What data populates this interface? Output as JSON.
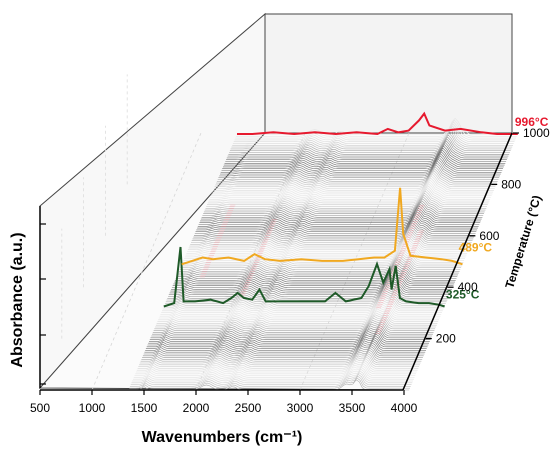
{
  "chart_data": {
    "type": "line",
    "subtype": "3d-waterfall-ftir",
    "xlabel": "Wavenumbers (cm⁻¹)",
    "ylabel": "Absorbance (a.u.)",
    "zlabel": "Temperature (°C)",
    "x_ticks": [
      "500",
      "1000",
      "1500",
      "2000",
      "2500",
      "3000",
      "3500",
      "4000"
    ],
    "z_ticks": [
      "200",
      "400",
      "600",
      "800",
      "1000"
    ],
    "xlim": [
      500,
      4000
    ],
    "zlim": [
      0,
      1000
    ],
    "grid": true,
    "series": [
      {
        "name": "325°C",
        "temperature": 325,
        "color": "#1e5a28",
        "points": [
          [
            1350,
            0.0
          ],
          [
            1450,
            0.02
          ],
          [
            1510,
            0.35
          ],
          [
            1540,
            0.03
          ],
          [
            1650,
            0.03
          ],
          [
            1800,
            0.04
          ],
          [
            1920,
            0.02
          ],
          [
            2000,
            0.05
          ],
          [
            2060,
            0.08
          ],
          [
            2120,
            0.05
          ],
          [
            2200,
            0.04
          ],
          [
            2270,
            0.1
          ],
          [
            2330,
            0.03
          ],
          [
            2500,
            0.03
          ],
          [
            2700,
            0.03
          ],
          [
            2900,
            0.03
          ],
          [
            3000,
            0.08
          ],
          [
            3100,
            0.03
          ],
          [
            3250,
            0.05
          ],
          [
            3320,
            0.12
          ],
          [
            3400,
            0.25
          ],
          [
            3460,
            0.14
          ],
          [
            3520,
            0.22
          ],
          [
            3540,
            0.1
          ],
          [
            3580,
            0.24
          ],
          [
            3620,
            0.05
          ],
          [
            3680,
            0.03
          ],
          [
            3800,
            0.02
          ],
          [
            3900,
            0.02
          ],
          [
            4000,
            0.01
          ],
          [
            4050,
            0.0
          ]
        ]
      },
      {
        "name": "489°C",
        "temperature": 489,
        "color": "#f0a820",
        "points": [
          [
            1350,
            0.0
          ],
          [
            1450,
            0.02
          ],
          [
            1550,
            0.04
          ],
          [
            1650,
            0.03
          ],
          [
            1800,
            0.04
          ],
          [
            1950,
            0.02
          ],
          [
            2050,
            0.06
          ],
          [
            2150,
            0.03
          ],
          [
            2300,
            0.02
          ],
          [
            2500,
            0.03
          ],
          [
            2700,
            0.02
          ],
          [
            2900,
            0.02
          ],
          [
            3050,
            0.03
          ],
          [
            3200,
            0.04
          ],
          [
            3300,
            0.04
          ],
          [
            3400,
            0.08
          ],
          [
            3450,
            0.45
          ],
          [
            3480,
            0.18
          ],
          [
            3550,
            0.05
          ],
          [
            3700,
            0.04
          ],
          [
            3850,
            0.03
          ],
          [
            3950,
            0.02
          ],
          [
            4050,
            0.0
          ]
        ]
      },
      {
        "name": "996°C",
        "temperature": 996,
        "color": "#e6192e",
        "points": [
          [
            1350,
            0.0
          ],
          [
            1500,
            0.0
          ],
          [
            1700,
            0.01
          ],
          [
            1900,
            0.0
          ],
          [
            2100,
            0.01
          ],
          [
            2300,
            0.0
          ],
          [
            2500,
            0.01
          ],
          [
            2700,
            0.0
          ],
          [
            2800,
            0.03
          ],
          [
            2900,
            0.01
          ],
          [
            3000,
            0.02
          ],
          [
            3100,
            0.08
          ],
          [
            3150,
            0.12
          ],
          [
            3200,
            0.05
          ],
          [
            3350,
            0.02
          ],
          [
            3500,
            0.03
          ],
          [
            3700,
            0.01
          ],
          [
            3850,
            0.0
          ],
          [
            4050,
            0.0
          ]
        ]
      }
    ]
  }
}
